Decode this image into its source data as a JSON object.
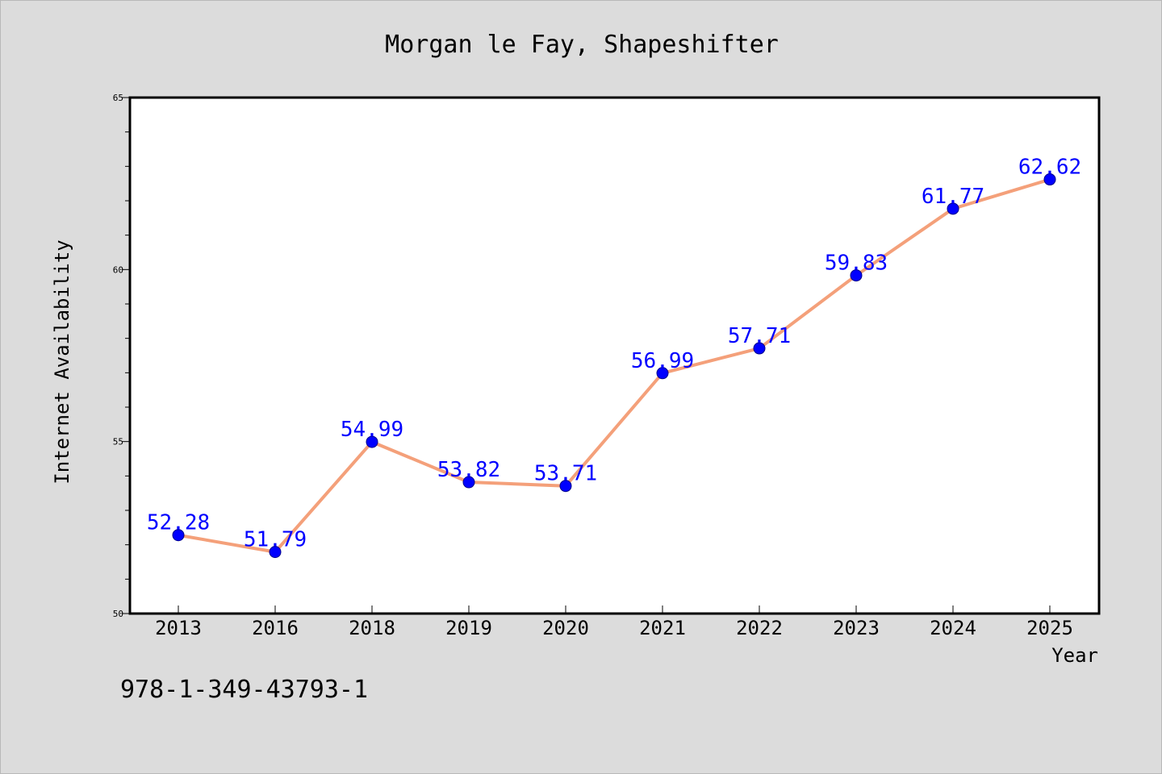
{
  "chart_data": {
    "type": "line",
    "title": "Morgan le Fay, Shapeshifter",
    "xlabel": "Year",
    "ylabel": "Internet Availability",
    "categories": [
      "2013",
      "2016",
      "2018",
      "2019",
      "2020",
      "2021",
      "2022",
      "2023",
      "2024",
      "2025"
    ],
    "series": [
      {
        "values": [
          52.28,
          51.79,
          54.99,
          53.82,
          53.71,
          56.99,
          57.71,
          59.83,
          61.77,
          62.62
        ],
        "data_labels": [
          "52.28",
          "51.79",
          "54.99",
          "53.82",
          "53.71",
          "56.99",
          "57.71",
          "59.83",
          "61.77",
          "62.62"
        ]
      }
    ],
    "ylim": [
      50,
      65
    ],
    "yticks": [
      50,
      55,
      60,
      65
    ],
    "ytick_labels": [
      "50",
      "55",
      "60",
      "65"
    ],
    "grid": false,
    "line_color": "#f4a07a",
    "marker_color": "#0000ff",
    "label_color": "#0000ff",
    "background_color": "#dcdcdc",
    "plot_background_color": "#ffffff"
  },
  "footer": {
    "isbn": "978-1-349-43793-1"
  }
}
